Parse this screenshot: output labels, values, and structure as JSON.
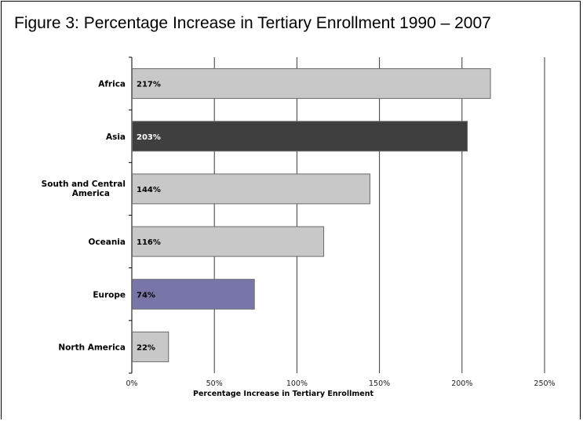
{
  "figure_title": "Figure 3: Percentage Increase in Tertiary Enrollment 1990 – 2007",
  "chart_data": {
    "type": "bar",
    "orientation": "horizontal",
    "title": "Figure 3: Percentage Increase in Tertiary Enrollment 1990 – 2007",
    "xlabel": "Percentage Increase in Tertiary Enrollment",
    "ylabel": "",
    "categories": [
      "Africa",
      "Asia",
      "South and Central America",
      "Oceania",
      "Europe",
      "North America"
    ],
    "values": [
      217,
      203,
      144,
      116,
      74,
      22
    ],
    "value_labels": [
      "217%",
      "203%",
      "144%",
      "116%",
      "74%",
      "22%"
    ],
    "bar_colors": [
      "#c8c8c8",
      "#3f3f3f",
      "#c8c8c8",
      "#c8c8c8",
      "#7876a8",
      "#c8c8c8"
    ],
    "label_colors": [
      "#000000",
      "#ffffff",
      "#000000",
      "#000000",
      "#000000",
      "#000000"
    ],
    "xlim": [
      0,
      250
    ],
    "x_ticks": [
      0,
      50,
      100,
      150,
      200,
      250
    ],
    "x_tick_labels": [
      "0%",
      "50%",
      "100%",
      "150%",
      "200%",
      "250%"
    ],
    "grid": "vertical",
    "legend": "none"
  }
}
